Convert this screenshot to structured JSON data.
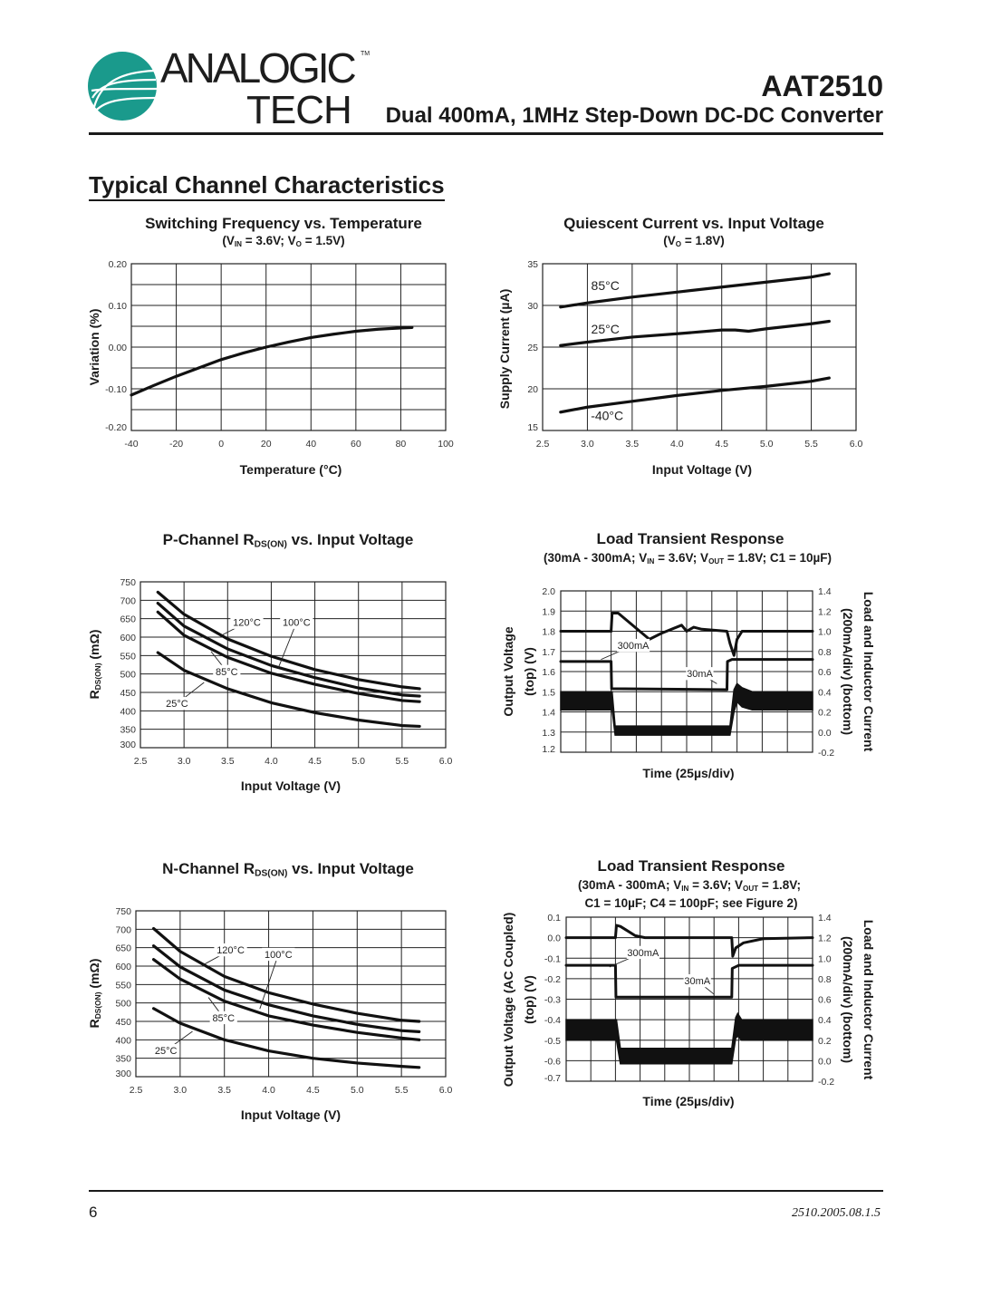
{
  "header": {
    "logo_text": "ANALOGIC TECH",
    "logo_line1": "ANALOGIC",
    "logo_line2": "TECH",
    "logo_tm": "TM",
    "brand_color": "#1a9a8c",
    "part_number": "AAT2510",
    "subtitle": "Dual 400mA, 1MHz Step-Down DC-DC Converter"
  },
  "section_title": "Typical Channel Characteristics",
  "footer": {
    "page_number": "6",
    "doc_number": "2510.2005.08.1.5"
  },
  "charts_text": [
    {
      "title": "Switching Frequency vs. Temperature",
      "subtitle": [
        "(V",
        "IN",
        " = 3.6V; V",
        "O",
        " = 1.5V)"
      ]
    },
    {
      "title": "Quiescent Current vs. Input Voltage",
      "subtitle": [
        "(V",
        "O",
        " = 1.8V)"
      ]
    },
    {
      "title": [
        "P-Channel R",
        "DS(ON)",
        " vs. Input Voltage"
      ]
    },
    {
      "title": [
        "N-Channel R",
        "DS(ON)",
        " vs. Input Voltage"
      ]
    },
    {
      "title": "Load Transient Response",
      "subtitle": [
        "(30mA - 300mA; V",
        "IN",
        " = 3.6V; V",
        "OUT",
        " = 1.8V; C1 = 10µF)"
      ]
    },
    {
      "title": "Load Transient Response",
      "subtitle": [
        "(30mA - 300mA; V",
        "IN",
        " = 3.6V; V",
        "OUT",
        " = 1.8V;"
      ],
      "subtitle2": "C1 = 10µF; C4 = 100pF; see Figure 2)"
    }
  ],
  "chart_data": [
    {
      "type": "line",
      "title": "Switching Frequency vs. Temperature",
      "xlabel": "Temperature (°C)",
      "ylabel": "Variation (%)",
      "xlim": [
        -40,
        100
      ],
      "ylim": [
        -0.2,
        0.2
      ],
      "grid": true,
      "xticks": [
        -40,
        -20,
        0,
        20,
        40,
        60,
        80,
        100
      ],
      "xtick_labels": [
        "-40",
        "-20",
        "0",
        "20",
        "40",
        "60",
        "80",
        "100"
      ],
      "yticks": [
        0.2,
        0.1,
        0.0,
        -0.1,
        -0.2
      ],
      "ytick_labels": [
        "0.20",
        "0.10",
        "0.00",
        "-0.10",
        "-0.20"
      ],
      "series": [
        {
          "x": [
            -40,
            -30,
            -20,
            -10,
            0,
            10,
            20,
            30,
            40,
            50,
            60,
            70,
            80,
            85
          ],
          "y": [
            -0.115,
            -0.092,
            -0.07,
            -0.05,
            -0.03,
            -0.014,
            0.0,
            0.012,
            0.023,
            0.031,
            0.038,
            0.043,
            0.046,
            0.047
          ]
        }
      ],
      "annotations": []
    },
    {
      "type": "line",
      "title": "Quiescent Current vs. Input Voltage",
      "xlabel": "Input Voltage (V)",
      "ylabel": "Supply Current (µA)",
      "xlim": [
        2.5,
        6.0
      ],
      "ylim": [
        15,
        35
      ],
      "grid": true,
      "xticks": [
        2.5,
        3.0,
        3.5,
        4.0,
        4.5,
        5.0,
        5.5,
        6.0
      ],
      "xtick_labels": [
        "2.5",
        "3.0",
        "3.5",
        "4.0",
        "4.5",
        "5.0",
        "5.5",
        "6.0"
      ],
      "yticks": [
        35,
        30,
        25,
        20,
        15
      ],
      "ytick_labels": [
        "35",
        "30",
        "25",
        "20",
        "15"
      ],
      "series": [
        {
          "name": "85°C",
          "x": [
            2.7,
            3.0,
            3.5,
            4.0,
            4.5,
            5.0,
            5.5,
            5.7
          ],
          "y": [
            29.8,
            30.3,
            31.0,
            31.6,
            32.2,
            32.8,
            33.4,
            33.8
          ]
        },
        {
          "name": "25°C",
          "x": [
            2.7,
            3.0,
            3.5,
            4.0,
            4.5,
            4.65,
            4.8,
            5.0,
            5.5,
            5.7
          ],
          "y": [
            25.2,
            25.6,
            26.2,
            26.6,
            27.05,
            27.05,
            26.9,
            27.2,
            27.8,
            28.1
          ]
        },
        {
          "name": "-40°C",
          "x": [
            2.7,
            3.0,
            3.5,
            4.0,
            4.5,
            5.0,
            5.5,
            5.7
          ],
          "y": [
            17.2,
            17.8,
            18.5,
            19.2,
            19.8,
            20.3,
            20.9,
            21.3
          ]
        }
      ],
      "annotations": [
        {
          "text": "85°C",
          "at": [
            3.2,
            32.4
          ]
        },
        {
          "text": "25°C",
          "at": [
            3.2,
            27.2
          ]
        },
        {
          "text": "-40°C",
          "at": [
            3.22,
            16.8
          ]
        }
      ]
    },
    {
      "type": "line",
      "title": "P-Channel RDS(ON) vs. Input Voltage",
      "xlabel": "Input Voltage (V)",
      "ylabel": [
        "R",
        "DS(ON)",
        " (mΩ)"
      ],
      "xlim": [
        2.5,
        6.0
      ],
      "ylim": [
        300,
        750
      ],
      "grid": true,
      "xticks": [
        2.5,
        3.0,
        3.5,
        4.0,
        4.5,
        5.0,
        5.5,
        6.0
      ],
      "xtick_labels": [
        "2.5",
        "3.0",
        "3.5",
        "4.0",
        "4.5",
        "5.0",
        "5.5",
        "6.0"
      ],
      "yticks": [
        750,
        700,
        650,
        600,
        550,
        500,
        450,
        400,
        350,
        300
      ],
      "ytick_labels": [
        "750",
        "700",
        "650",
        "600",
        "550",
        "500",
        "450",
        "400",
        "350",
        "300"
      ],
      "series": [
        {
          "name": "120°C",
          "x": [
            2.7,
            3.0,
            3.5,
            4.0,
            4.5,
            5.0,
            5.5,
            5.7
          ],
          "y": [
            722,
            662,
            595,
            548,
            512,
            485,
            465,
            460
          ]
        },
        {
          "name": "100°C",
          "x": [
            2.7,
            3.0,
            3.5,
            4.0,
            4.5,
            5.0,
            5.5,
            5.7
          ],
          "y": [
            692,
            630,
            568,
            523,
            490,
            462,
            443,
            440
          ]
        },
        {
          "name": "85°C",
          "x": [
            2.7,
            3.0,
            3.5,
            4.0,
            4.5,
            5.0,
            5.5,
            5.7
          ],
          "y": [
            668,
            605,
            545,
            502,
            472,
            447,
            428,
            425
          ]
        },
        {
          "name": "25°C",
          "x": [
            2.7,
            3.0,
            3.5,
            4.0,
            4.5,
            5.0,
            5.5,
            5.7
          ],
          "y": [
            558,
            510,
            460,
            422,
            395,
            375,
            360,
            358
          ]
        }
      ],
      "annotations": [
        {
          "text": "120°C",
          "at": [
            3.72,
            640
          ],
          "to": [
            3.43,
            605
          ]
        },
        {
          "text": "100°C",
          "at": [
            4.29,
            640
          ],
          "to": [
            4.08,
            516
          ]
        },
        {
          "text": "85°C",
          "at": [
            3.49,
            507
          ],
          "to": [
            3.31,
            561
          ]
        },
        {
          "text": "25°C",
          "at": [
            2.92,
            420
          ],
          "to": [
            3.23,
            477
          ]
        }
      ]
    },
    {
      "type": "line",
      "title": "N-Channel RDS(ON) vs. Input Voltage",
      "xlabel": "Input Voltage (V)",
      "ylabel": [
        "R",
        "DS(ON)",
        " (mΩ)"
      ],
      "xlim": [
        2.5,
        6.0
      ],
      "ylim": [
        300,
        750
      ],
      "grid": true,
      "xticks": [
        2.5,
        3.0,
        3.5,
        4.0,
        4.5,
        5.0,
        5.5,
        6.0
      ],
      "xtick_labels": [
        "2.5",
        "3.0",
        "3.5",
        "4.0",
        "4.5",
        "5.0",
        "5.5",
        "6.0"
      ],
      "yticks": [
        750,
        700,
        650,
        600,
        550,
        500,
        450,
        400,
        350,
        300
      ],
      "ytick_labels": [
        "750",
        "700",
        "650",
        "600",
        "550",
        "500",
        "450",
        "400",
        "350",
        "300"
      ],
      "series": [
        {
          "name": "120°C",
          "x": [
            2.7,
            3.0,
            3.5,
            4.0,
            4.5,
            5.0,
            5.5,
            5.7
          ],
          "y": [
            702,
            640,
            572,
            528,
            497,
            472,
            453,
            450
          ]
        },
        {
          "name": "100°C",
          "x": [
            2.7,
            3.0,
            3.5,
            4.0,
            4.5,
            5.0,
            5.5,
            5.7
          ],
          "y": [
            655,
            598,
            535,
            495,
            465,
            442,
            425,
            422
          ]
        },
        {
          "name": "85°C",
          "x": [
            2.7,
            3.0,
            3.5,
            4.0,
            4.5,
            5.0,
            5.5,
            5.7
          ],
          "y": [
            618,
            565,
            505,
            465,
            440,
            420,
            405,
            400
          ]
        },
        {
          "name": "25°C",
          "x": [
            2.7,
            3.0,
            3.5,
            4.0,
            4.5,
            5.0,
            5.5,
            5.7
          ],
          "y": [
            485,
            445,
            400,
            370,
            350,
            337,
            328,
            325
          ]
        }
      ],
      "annotations": [
        {
          "text": "120°C",
          "at": [
            3.57,
            644
          ],
          "to": [
            3.25,
            602
          ]
        },
        {
          "text": "100°C",
          "at": [
            4.11,
            632
          ],
          "to": [
            3.9,
            484
          ]
        },
        {
          "text": "85°C",
          "at": [
            3.49,
            460
          ],
          "to": [
            3.32,
            515
          ]
        },
        {
          "text": "25°C",
          "at": [
            2.84,
            371
          ],
          "to": [
            3.14,
            423
          ]
        }
      ]
    },
    {
      "type": "line",
      "title": "Load Transient Response",
      "xlabel": "Time (25µs/div)",
      "ylabel": [
        "Output Voltage",
        "(top) (V)"
      ],
      "y2label": [
        "Load and Inductor Current",
        "(200mA/div) (bottom)"
      ],
      "xlim": [
        0,
        250
      ],
      "ylim": [
        1.2,
        2.0
      ],
      "y2lim": [
        -0.2,
        1.4
      ],
      "grid": true,
      "xticks": [],
      "xtick_labels": [],
      "yticks": [
        2.0,
        1.9,
        1.8,
        1.7,
        1.6,
        1.5,
        1.4,
        1.3,
        1.2
      ],
      "ytick_labels": [
        "2.0",
        "1.9",
        "1.8",
        "1.7",
        "1.6",
        "1.5",
        "1.4",
        "1.3",
        "1.2"
      ],
      "y2ticks": [
        1.4,
        1.2,
        1.0,
        0.8,
        0.6,
        0.4,
        0.2,
        0.0,
        -0.2
      ],
      "y2tick_labels": [
        "1.4",
        "1.2",
        "1.0",
        "0.8",
        "0.6",
        "0.4",
        "0.2",
        "0.0",
        "-0.2"
      ],
      "series": [
        {
          "axis": "left",
          "x": [
            0,
            50,
            51,
            57,
            88,
            100,
            120,
            125,
            132,
            140,
            165,
            168,
            172,
            175,
            180,
            250
          ],
          "y": [
            1.8,
            1.8,
            1.89,
            1.89,
            1.76,
            1.79,
            1.83,
            1.8,
            1.82,
            1.81,
            1.8,
            1.74,
            1.68,
            1.76,
            1.8,
            1.8
          ]
        },
        {
          "axis": "right",
          "x": [
            0,
            50,
            50.5,
            165,
            165.5,
            170,
            250
          ],
          "y": [
            0.7,
            0.7,
            0.43,
            0.42,
            0.7,
            0.72,
            0.72
          ]
        }
      ],
      "bands": [
        {
          "axis": "right",
          "x": [
            0,
            51,
            54,
            56,
            168,
            172,
            175,
            180,
            190,
            250
          ],
          "lower": [
            0.22,
            0.22,
            -0.03,
            -0.03,
            -0.03,
            0.2,
            0.3,
            0.25,
            0.22,
            0.22
          ],
          "upper": [
            0.4,
            0.4,
            0.06,
            0.06,
            0.06,
            0.42,
            0.48,
            0.44,
            0.4,
            0.4
          ]
        }
      ],
      "annotations": [
        {
          "text": "300mA",
          "at": [
            72,
            1.73
          ],
          "to": [
            40,
            1.66
          ]
        },
        {
          "text": "30mA",
          "at": [
            138,
            1.59
          ],
          "to": [
            155,
            1.54
          ]
        }
      ]
    },
    {
      "type": "line",
      "title": "Load Transient Response",
      "xlabel": "Time (25µs/div)",
      "ylabel": [
        "Output Voltage (AC Coupled)",
        "(top) (V)"
      ],
      "y2label": [
        "Load and Inductor Current",
        "(200mA/div) (bottom)"
      ],
      "xlim": [
        0,
        250
      ],
      "ylim": [
        -0.7,
        0.1
      ],
      "y2lim": [
        -0.2,
        1.4
      ],
      "grid": true,
      "xticks": [],
      "xtick_labels": [],
      "yticks": [
        0.1,
        0.0,
        -0.1,
        -0.2,
        -0.3,
        -0.4,
        -0.5,
        -0.6,
        -0.7
      ],
      "ytick_labels": [
        "0.1",
        "0.0",
        "-0.1",
        "-0.2",
        "-0.3",
        "-0.4",
        "-0.5",
        "-0.6",
        "-0.7"
      ],
      "y2ticks": [
        1.4,
        1.2,
        1.0,
        0.8,
        0.6,
        0.4,
        0.2,
        0.0,
        -0.2
      ],
      "y2tick_labels": [
        "1.4",
        "1.2",
        "1.0",
        "0.8",
        "0.6",
        "0.4",
        "0.2",
        "0.0",
        "-0.2"
      ],
      "series": [
        {
          "axis": "left",
          "x": [
            0,
            50,
            51,
            55,
            60,
            70,
            80,
            168,
            169,
            172,
            180,
            200,
            250
          ],
          "y": [
            0.0,
            0.0,
            0.06,
            0.055,
            0.04,
            0.01,
            0.0,
            0.0,
            -0.09,
            -0.05,
            -0.025,
            -0.005,
            0.0
          ]
        },
        {
          "axis": "right",
          "x": [
            0,
            50,
            50.5,
            168,
            168.5,
            175,
            250
          ],
          "y": [
            0.93,
            0.93,
            0.62,
            0.62,
            0.9,
            0.93,
            0.93
          ]
        }
      ],
      "bands": [
        {
          "axis": "right",
          "x": [
            0,
            51,
            55,
            60,
            168,
            172,
            174,
            178,
            250
          ],
          "lower": [
            0.2,
            0.2,
            -0.03,
            -0.03,
            -0.03,
            0.22,
            0.24,
            0.2,
            0.2
          ],
          "upper": [
            0.4,
            0.4,
            0.12,
            0.12,
            0.12,
            0.42,
            0.46,
            0.4,
            0.4
          ]
        }
      ],
      "annotations": [
        {
          "text": "300mA",
          "at": [
            78,
            -0.072
          ],
          "to": [
            44,
            -0.143
          ]
        },
        {
          "text": "30mA",
          "at": [
            133,
            -0.21
          ],
          "to": [
            150,
            -0.276
          ]
        }
      ]
    }
  ]
}
